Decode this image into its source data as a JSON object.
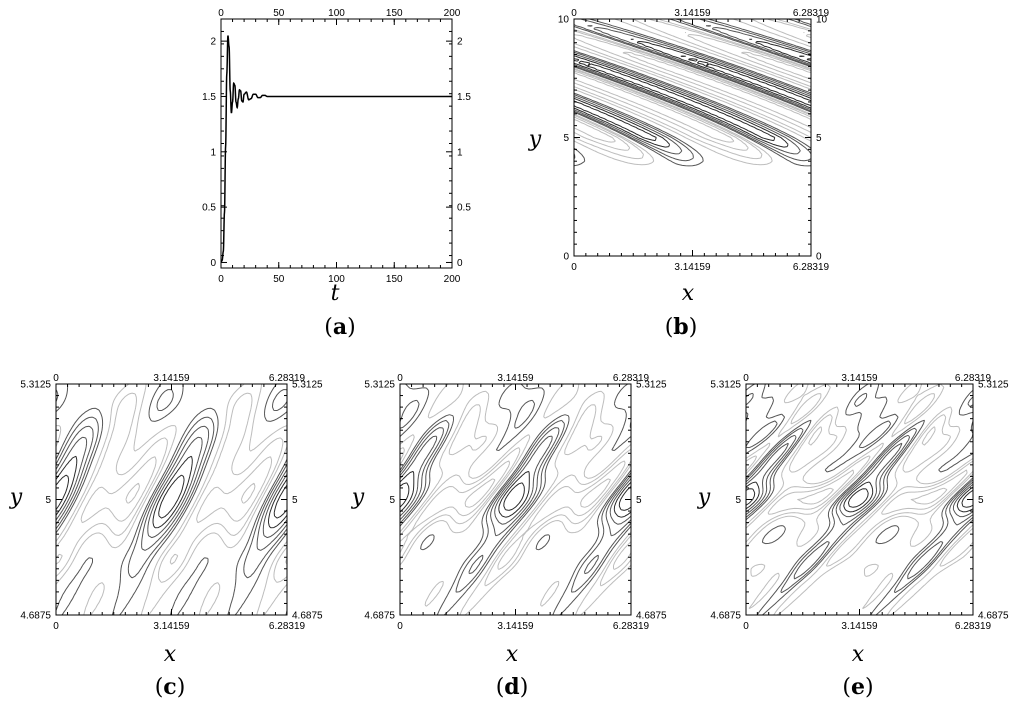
{
  "chart_data": [
    {
      "panel": "(a)",
      "label_letter": "a",
      "type": "line",
      "xlabel": "t",
      "ylabel": "",
      "xlim": [
        0,
        200
      ],
      "ylim": [
        -0.05,
        2.2
      ],
      "xticks": [
        0,
        50,
        100,
        150,
        200
      ],
      "yticks": [
        0,
        0.5,
        1,
        1.5,
        2
      ],
      "xtick_labels": [
        "0",
        "50",
        "100",
        "150",
        "200"
      ],
      "ytick_labels": [
        "0",
        "0.5",
        "1",
        "1.5",
        "2"
      ],
      "series": [
        {
          "color": "#000000",
          "x": [
            0,
            1,
            2,
            3,
            4,
            5,
            6,
            7,
            8,
            9,
            10,
            11,
            12,
            13,
            14,
            15,
            16,
            17,
            18,
            19,
            20,
            22,
            24,
            26,
            28,
            30,
            32,
            34,
            36,
            38,
            40,
            45,
            50,
            60,
            80,
            100,
            150,
            200
          ],
          "y": [
            0.0,
            0.02,
            0.1,
            0.45,
            1.05,
            1.7,
            2.05,
            1.95,
            1.55,
            1.35,
            1.45,
            1.62,
            1.6,
            1.45,
            1.4,
            1.48,
            1.56,
            1.55,
            1.46,
            1.45,
            1.52,
            1.54,
            1.47,
            1.48,
            1.52,
            1.52,
            1.49,
            1.49,
            1.51,
            1.51,
            1.5,
            1.5,
            1.5,
            1.5,
            1.5,
            1.5,
            1.5,
            1.5
          ]
        }
      ]
    },
    {
      "panel": "(b)",
      "label_letter": "b",
      "type": "contour",
      "xlabel": "x",
      "ylabel": "y",
      "xlim": [
        0,
        6.28319
      ],
      "ylim": [
        0,
        10
      ],
      "xticks": [
        0,
        3.14159,
        6.28319
      ],
      "yticks": [
        0,
        5,
        10
      ],
      "xtick_labels": [
        "0",
        "3.14159",
        "6.28319"
      ],
      "ytick_labels": [
        "0",
        "5",
        "10"
      ],
      "field": {
        "kind": "jet",
        "center_y": 5.2,
        "wavenumber": 2,
        "tilt": 0.9,
        "decay": 1.6
      },
      "levels": [
        -0.9,
        -0.7,
        -0.5,
        -0.3,
        -0.15,
        0.15,
        0.3,
        0.5,
        0.7,
        0.9
      ]
    },
    {
      "panel": "(c)",
      "label_letter": "c",
      "type": "contour",
      "xlabel": "x",
      "ylabel": "y",
      "xlim": [
        0,
        6.28319
      ],
      "ylim": [
        4.6875,
        5.3125
      ],
      "xticks": [
        0,
        3.14159,
        6.28319
      ],
      "yticks": [
        4.6875,
        5,
        5.3125
      ],
      "xtick_labels": [
        "0",
        "3.14159",
        "6.28319"
      ],
      "ytick_labels": [
        "4.6875",
        "5",
        "5.3125"
      ],
      "field": {
        "kind": "layer",
        "center_y": 5.0,
        "wavenumber": 2,
        "tilt": 0.055,
        "width": 0.08,
        "harmonics": 1
      },
      "levels": [
        -0.85,
        -0.7,
        -0.55,
        -0.4,
        -0.25,
        -0.12,
        0.12,
        0.25,
        0.4,
        0.55,
        0.7,
        0.85
      ]
    },
    {
      "panel": "(d)",
      "label_letter": "d",
      "type": "contour",
      "xlabel": "x",
      "ylabel": "y",
      "xlim": [
        0,
        6.28319
      ],
      "ylim": [
        4.6875,
        5.3125
      ],
      "xticks": [
        0,
        3.14159,
        6.28319
      ],
      "yticks": [
        4.6875,
        5,
        5.3125
      ],
      "xtick_labels": [
        "0",
        "3.14159",
        "6.28319"
      ],
      "ytick_labels": [
        "4.6875",
        "5",
        "5.3125"
      ],
      "field": {
        "kind": "layer",
        "center_y": 5.0,
        "wavenumber": 2,
        "tilt": 0.04,
        "width": 0.05,
        "harmonics": 2
      },
      "levels": [
        -0.85,
        -0.7,
        -0.55,
        -0.4,
        -0.25,
        -0.12,
        0.12,
        0.25,
        0.4,
        0.55,
        0.7,
        0.85
      ]
    },
    {
      "panel": "(e)",
      "label_letter": "e",
      "type": "contour",
      "xlabel": "x",
      "ylabel": "y",
      "xlim": [
        0,
        6.28319
      ],
      "ylim": [
        4.6875,
        5.3125
      ],
      "xticks": [
        0,
        3.14159,
        6.28319
      ],
      "yticks": [
        4.6875,
        5,
        5.3125
      ],
      "xtick_labels": [
        "0",
        "3.14159",
        "6.28319"
      ],
      "ytick_labels": [
        "4.6875",
        "5",
        "5.3125"
      ],
      "field": {
        "kind": "layer",
        "center_y": 5.0,
        "wavenumber": 2,
        "tilt": 0.03,
        "width": 0.035,
        "harmonics": 3
      },
      "levels": [
        -0.85,
        -0.7,
        -0.55,
        -0.4,
        -0.25,
        -0.12,
        0.12,
        0.25,
        0.4,
        0.55,
        0.7,
        0.85
      ]
    }
  ]
}
